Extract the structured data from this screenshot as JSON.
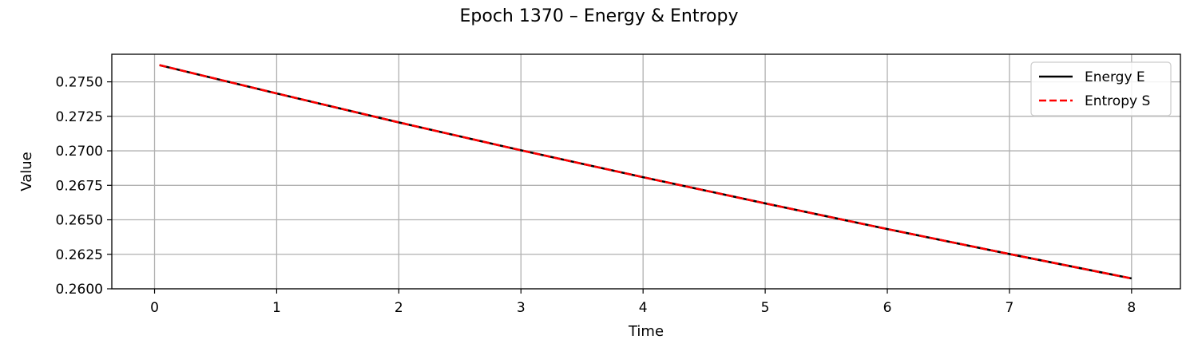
{
  "chart_data": {
    "type": "line",
    "title": "Epoch 1370 – Energy & Entropy",
    "xlabel": "Time",
    "ylabel": "Value",
    "xlim": [
      -0.35,
      8.4
    ],
    "ylim": [
      0.26,
      0.277
    ],
    "xticks": [
      0,
      1,
      2,
      3,
      4,
      5,
      6,
      7,
      8
    ],
    "xtick_labels": [
      "0",
      "1",
      "2",
      "3",
      "4",
      "5",
      "6",
      "7",
      "8"
    ],
    "yticks": [
      0.26,
      0.2625,
      0.265,
      0.2675,
      0.27,
      0.2725,
      0.275
    ],
    "ytick_labels": [
      "0.2600",
      "0.2625",
      "0.2650",
      "0.2675",
      "0.2700",
      "0.2725",
      "0.2750"
    ],
    "grid": true,
    "legend_position": "top-right",
    "series": [
      {
        "name": "Energy E",
        "color": "#000000",
        "style": "solid",
        "x": [
          0.04,
          1,
          2,
          3,
          4,
          5,
          6,
          7,
          8
        ],
        "y": [
          0.27621,
          0.27416,
          0.27206,
          0.27004,
          0.26809,
          0.26619,
          0.26433,
          0.26252,
          0.26075
        ]
      },
      {
        "name": "Entropy S",
        "color": "#ff0000",
        "style": "dashed",
        "x": [
          0.04,
          1,
          2,
          3,
          4,
          5,
          6,
          7,
          8
        ],
        "y": [
          0.27621,
          0.27416,
          0.27206,
          0.27004,
          0.26809,
          0.26619,
          0.26433,
          0.26252,
          0.26075
        ]
      }
    ]
  }
}
